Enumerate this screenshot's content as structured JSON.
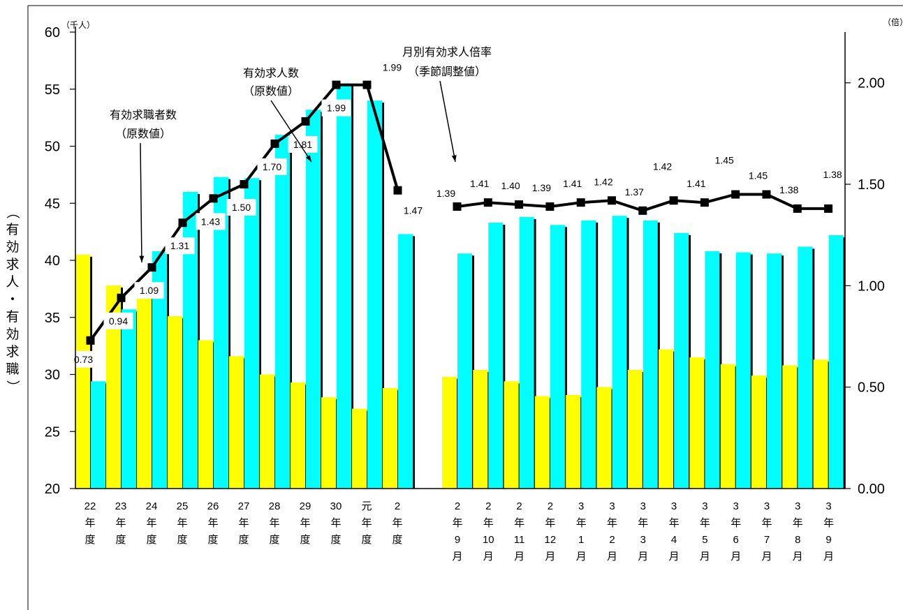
{
  "chart_data": {
    "type": "bar",
    "left_axis": {
      "unit": "（千人）",
      "label": "（有効求人・有効求職）",
      "ylim": [
        20,
        60
      ],
      "ticks": [
        20,
        25,
        30,
        35,
        40,
        45,
        50,
        55,
        60
      ]
    },
    "right_axis": {
      "unit": "（倍）",
      "ylim": [
        0,
        2.25
      ],
      "ticks": [
        "0.00",
        "0.50",
        "1.00",
        "1.50",
        "2.00"
      ]
    },
    "groups": [
      {
        "name": "annual",
        "categories": [
          "22年度",
          "23年度",
          "24年度",
          "25年度",
          "26年度",
          "27年度",
          "28年度",
          "29年度",
          "30年度",
          "元年度",
          "2年度"
        ],
        "category_lines": [
          [
            "22",
            "年",
            "度"
          ],
          [
            "23",
            "年",
            "度"
          ],
          [
            "24",
            "年",
            "度"
          ],
          [
            "25",
            "年",
            "度"
          ],
          [
            "26",
            "年",
            "度"
          ],
          [
            "27",
            "年",
            "度"
          ],
          [
            "28",
            "年",
            "度"
          ],
          [
            "29",
            "年",
            "度"
          ],
          [
            "30",
            "年",
            "度"
          ],
          [
            "元",
            "年",
            "度"
          ],
          [
            "2",
            "年",
            "度"
          ]
        ],
        "job_seekers": [
          40.5,
          37.8,
          37.5,
          35.1,
          33.0,
          31.6,
          30.0,
          29.3,
          28.0,
          27.0,
          28.8
        ],
        "job_openings": [
          29.4,
          35.7,
          40.8,
          46.0,
          47.3,
          47.2,
          51.0,
          53.2,
          55.5,
          54.0,
          42.3
        ],
        "ratio": [
          0.73,
          0.94,
          1.09,
          1.31,
          1.43,
          1.5,
          1.7,
          1.81,
          1.99,
          1.99,
          1.47
        ],
        "ratio_labels": [
          "0.73",
          "0.94",
          "1.09",
          "1.31",
          "1.43",
          "1.50",
          "1.70",
          "1.81",
          "1.99",
          "1.99",
          "1.47"
        ]
      },
      {
        "name": "monthly",
        "categories": [
          "2年9月",
          "2年10月",
          "2年11月",
          "2年12月",
          "3年1月",
          "3年2月",
          "3年3月",
          "3年4月",
          "3年5月",
          "3年6月",
          "3年7月",
          "3年8月",
          "3年9月"
        ],
        "category_lines": [
          [
            "2",
            "年",
            "9",
            "月"
          ],
          [
            "2",
            "年",
            "10",
            "月"
          ],
          [
            "2",
            "年",
            "11",
            "月"
          ],
          [
            "2",
            "年",
            "12",
            "月"
          ],
          [
            "3",
            "年",
            "1",
            "月"
          ],
          [
            "3",
            "年",
            "2",
            "月"
          ],
          [
            "3",
            "年",
            "3",
            "月"
          ],
          [
            "3",
            "年",
            "4",
            "月"
          ],
          [
            "3",
            "年",
            "5",
            "月"
          ],
          [
            "3",
            "年",
            "6",
            "月"
          ],
          [
            "3",
            "年",
            "7",
            "月"
          ],
          [
            "3",
            "年",
            "8",
            "月"
          ],
          [
            "3",
            "年",
            "9",
            "月"
          ]
        ],
        "job_seekers": [
          29.8,
          30.4,
          29.4,
          28.1,
          28.2,
          28.9,
          30.4,
          32.2,
          31.5,
          30.9,
          29.9,
          30.8,
          31.3
        ],
        "job_openings": [
          40.6,
          43.3,
          43.8,
          43.1,
          43.5,
          43.9,
          43.5,
          42.4,
          40.8,
          40.7,
          40.6,
          41.2,
          42.2
        ],
        "ratio": [
          1.39,
          1.41,
          1.4,
          1.39,
          1.41,
          1.42,
          1.37,
          1.42,
          1.41,
          1.45,
          1.45,
          1.38,
          1.38
        ],
        "ratio_labels": [
          "1.39",
          "1.41",
          "1.40",
          "1.39",
          "1.41",
          "1.42",
          "1.37",
          "1.42",
          "1.41",
          "1.45",
          "1.45",
          "1.38",
          "1.38"
        ]
      }
    ],
    "annotations": {
      "seekers": [
        "有効求職者数",
        "（原数値）"
      ],
      "openings": [
        "有効求人数",
        "（原数値）"
      ],
      "monthly_ratio": [
        "月別有効求人倍率",
        "（季節調整値）"
      ]
    },
    "colors": {
      "job_seekers": "#ffff00",
      "job_openings": "#00ffff",
      "ratio_line": "#000000",
      "bar_shadow": "#000000"
    }
  }
}
